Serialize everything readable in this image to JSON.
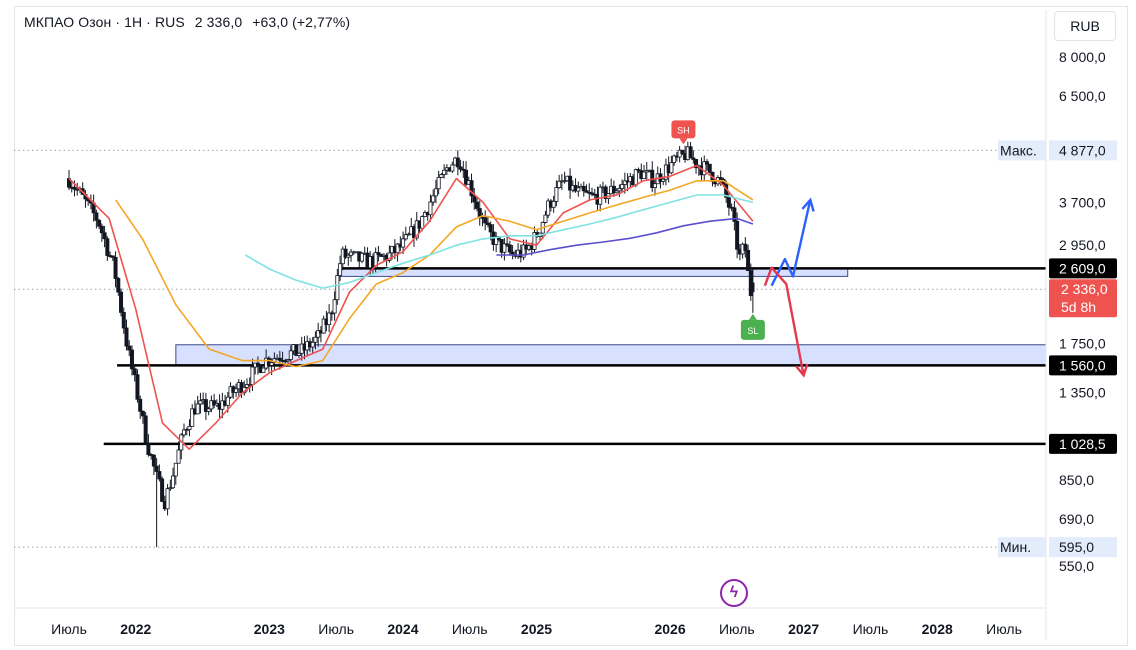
{
  "header": {
    "title": "МКПАО Озон · 1H · RUS",
    "price": "2 336,0",
    "change": "+63,0 (+2,77%)"
  },
  "currency_button": "RUB",
  "colors": {
    "up": "#26a69a",
    "down": "#ef5350",
    "candle": "#131722",
    "zone_fill": "#c9d7ff",
    "ma_red": "#ef5350",
    "ma_orange": "#f5a623",
    "ma_cyan": "#7fe3e3",
    "ma_purple": "#5b4fcf",
    "arrow_blue": "#2962ff",
    "arrow_red": "#e53950"
  },
  "chart_data": {
    "type": "candlestick",
    "y_scale": "log",
    "y_ticks": [
      "8 000,0",
      "6 500,0",
      "3 700,0",
      "2 950,0",
      "1 750,0",
      "1 350,0",
      "850,0",
      "690,0",
      "550,0"
    ],
    "y_tick_values": [
      8000,
      6500,
      3700,
      2950,
      1750,
      1350,
      850,
      690,
      550
    ],
    "x_ticks": [
      "Июль",
      "2022",
      "2023",
      "Июль",
      "2024",
      "Июль",
      "2025",
      "2026",
      "Июль",
      "2027",
      "Июль",
      "2028",
      "Июль"
    ],
    "x_tick_values": [
      2021.5,
      2022.0,
      2023.0,
      2023.5,
      2024.0,
      2024.5,
      2025.0,
      2026.0,
      2026.5,
      2027.0,
      2027.5,
      2028.0,
      2028.5
    ],
    "bold_tick_labels": [
      "2022",
      "2023",
      "2024",
      "2025",
      "2026",
      "2027",
      "2028"
    ],
    "ylim": [
      470,
      9200
    ],
    "xlim": [
      2021.49,
      2029.0
    ],
    "price_path": [
      [
        2021.5,
        4200
      ],
      [
        2021.6,
        3800
      ],
      [
        2021.72,
        3350
      ],
      [
        2021.84,
        2600
      ],
      [
        2021.94,
        1700
      ],
      [
        2022.02,
        1300
      ],
      [
        2022.08,
        1050
      ],
      [
        2022.16,
        850
      ],
      [
        2022.22,
        760
      ],
      [
        2022.28,
        880
      ],
      [
        2022.36,
        1100
      ],
      [
        2022.44,
        1250
      ],
      [
        2022.52,
        1250
      ],
      [
        2022.62,
        1250
      ],
      [
        2022.72,
        1350
      ],
      [
        2022.84,
        1450
      ],
      [
        2022.96,
        1600
      ],
      [
        2023.1,
        1650
      ],
      [
        2023.24,
        1680
      ],
      [
        2023.36,
        1800
      ],
      [
        2023.46,
        2050
      ],
      [
        2023.54,
        2800
      ],
      [
        2023.64,
        2750
      ],
      [
        2023.76,
        2700
      ],
      [
        2023.9,
        2800
      ],
      [
        2024.0,
        2950
      ],
      [
        2024.12,
        3300
      ],
      [
        2024.24,
        3900
      ],
      [
        2024.34,
        4500
      ],
      [
        2024.42,
        4700
      ],
      [
        2024.52,
        3900
      ],
      [
        2024.62,
        3200
      ],
      [
        2024.72,
        2950
      ],
      [
        2024.82,
        2800
      ],
      [
        2024.92,
        2850
      ],
      [
        2025.0,
        3100
      ],
      [
        2025.1,
        3700
      ],
      [
        2025.2,
        4150
      ],
      [
        2025.3,
        3900
      ],
      [
        2025.42,
        3800
      ],
      [
        2025.54,
        3900
      ],
      [
        2025.66,
        4100
      ],
      [
        2025.78,
        4350
      ],
      [
        2025.88,
        4150
      ],
      [
        2026.0,
        4500
      ],
      [
        2026.12,
        4800
      ],
      [
        2026.2,
        4550
      ],
      [
        2026.3,
        4350
      ],
      [
        2026.38,
        4100
      ],
      [
        2026.46,
        3500
      ],
      [
        2026.52,
        2750
      ],
      [
        2026.56,
        2950
      ],
      [
        2026.6,
        2290
      ],
      [
        2026.62,
        2336
      ]
    ],
    "wick_extremes": [
      [
        2022.16,
        595,
        "low"
      ],
      [
        2026.1,
        4877,
        "high"
      ]
    ],
    "moving_averages": [
      {
        "color": "#ef5350",
        "points": [
          [
            2021.5,
            4200
          ],
          [
            2021.8,
            3400
          ],
          [
            2022.0,
            2100
          ],
          [
            2022.2,
            1150
          ],
          [
            2022.4,
            1000
          ],
          [
            2022.6,
            1150
          ],
          [
            2022.8,
            1350
          ],
          [
            2023.0,
            1500
          ],
          [
            2023.2,
            1600
          ],
          [
            2023.4,
            1700
          ],
          [
            2023.6,
            2300
          ],
          [
            2023.8,
            2650
          ],
          [
            2024.0,
            2850
          ],
          [
            2024.2,
            3350
          ],
          [
            2024.4,
            4200
          ],
          [
            2024.6,
            3700
          ],
          [
            2024.8,
            3050
          ],
          [
            2025.0,
            2950
          ],
          [
            2025.2,
            3500
          ],
          [
            2025.4,
            3750
          ],
          [
            2025.6,
            3850
          ],
          [
            2025.8,
            4150
          ],
          [
            2026.0,
            4250
          ],
          [
            2026.2,
            4500
          ],
          [
            2026.4,
            4050
          ],
          [
            2026.62,
            3350
          ]
        ]
      },
      {
        "color": "#f5a623",
        "points": [
          [
            2021.85,
            3750
          ],
          [
            2022.05,
            3050
          ],
          [
            2022.3,
            2150
          ],
          [
            2022.55,
            1700
          ],
          [
            2022.8,
            1600
          ],
          [
            2023.0,
            1600
          ],
          [
            2023.2,
            1550
          ],
          [
            2023.4,
            1600
          ],
          [
            2023.6,
            2000
          ],
          [
            2023.8,
            2400
          ],
          [
            2024.0,
            2550
          ],
          [
            2024.2,
            2800
          ],
          [
            2024.4,
            3250
          ],
          [
            2024.6,
            3450
          ],
          [
            2024.8,
            3350
          ],
          [
            2025.0,
            3200
          ],
          [
            2025.2,
            3350
          ],
          [
            2025.4,
            3500
          ],
          [
            2025.6,
            3650
          ],
          [
            2025.8,
            3800
          ],
          [
            2026.0,
            3950
          ],
          [
            2026.2,
            4150
          ],
          [
            2026.4,
            4150
          ],
          [
            2026.62,
            3750
          ]
        ]
      },
      {
        "color": "#7fe3e3",
        "points": [
          [
            2022.82,
            2800
          ],
          [
            2023.0,
            2600
          ],
          [
            2023.2,
            2450
          ],
          [
            2023.4,
            2350
          ],
          [
            2023.6,
            2420
          ],
          [
            2023.8,
            2550
          ],
          [
            2024.0,
            2680
          ],
          [
            2024.2,
            2800
          ],
          [
            2024.4,
            2950
          ],
          [
            2024.6,
            3050
          ],
          [
            2024.8,
            3100
          ],
          [
            2025.0,
            3100
          ],
          [
            2025.2,
            3200
          ],
          [
            2025.4,
            3300
          ],
          [
            2025.6,
            3420
          ],
          [
            2025.8,
            3560
          ],
          [
            2026.0,
            3700
          ],
          [
            2026.2,
            3850
          ],
          [
            2026.4,
            3850
          ],
          [
            2026.62,
            3700
          ]
        ]
      },
      {
        "color": "#5b4fcf",
        "points": [
          [
            2024.7,
            2800
          ],
          [
            2024.9,
            2800
          ],
          [
            2025.1,
            2880
          ],
          [
            2025.3,
            2950
          ],
          [
            2025.5,
            3000
          ],
          [
            2025.7,
            3060
          ],
          [
            2025.9,
            3150
          ],
          [
            2026.1,
            3270
          ],
          [
            2026.3,
            3350
          ],
          [
            2026.5,
            3400
          ],
          [
            2026.62,
            3300
          ]
        ]
      }
    ],
    "horizontal_levels": [
      {
        "value": 4877,
        "style": "dotted",
        "label": "4 877,0",
        "tag": "Макс."
      },
      {
        "value": 2609,
        "style": "solid",
        "label": "2 609,0"
      },
      {
        "value": 2336,
        "style": "dotted",
        "label": "2 336,0"
      },
      {
        "value": 1560,
        "style": "solid",
        "label": "1 560,0"
      },
      {
        "value": 1028.5,
        "style": "solid",
        "label": "1 028,5"
      },
      {
        "value": 595,
        "style": "dotted",
        "label": "595,0",
        "tag": "Мин."
      }
    ],
    "zones": [
      {
        "x0": 2023.53,
        "x1": 2027.33,
        "y0": 2500,
        "y1": 2609
      },
      {
        "x0": 2022.3,
        "x1": 2029.0,
        "y0": 1560,
        "y1": 1740
      }
    ],
    "markers": [
      {
        "x": 2026.1,
        "y": 4877,
        "label": "SH",
        "color": "#ef5350",
        "pos": "above"
      },
      {
        "x": 2026.62,
        "y": 2050,
        "label": "SL",
        "color": "#4caf50",
        "pos": "below"
      }
    ],
    "countdown": "5d 8h",
    "projections": [
      {
        "color": "#2962ff",
        "points": [
          [
            2026.76,
            2380
          ],
          [
            2026.86,
            2740
          ],
          [
            2026.92,
            2500
          ],
          [
            2027.05,
            3750
          ]
        ]
      },
      {
        "color": "#e53950",
        "points": [
          [
            2026.71,
            2380
          ],
          [
            2026.76,
            2620
          ],
          [
            2026.87,
            2400
          ],
          [
            2027.0,
            1480
          ]
        ]
      }
    ]
  }
}
